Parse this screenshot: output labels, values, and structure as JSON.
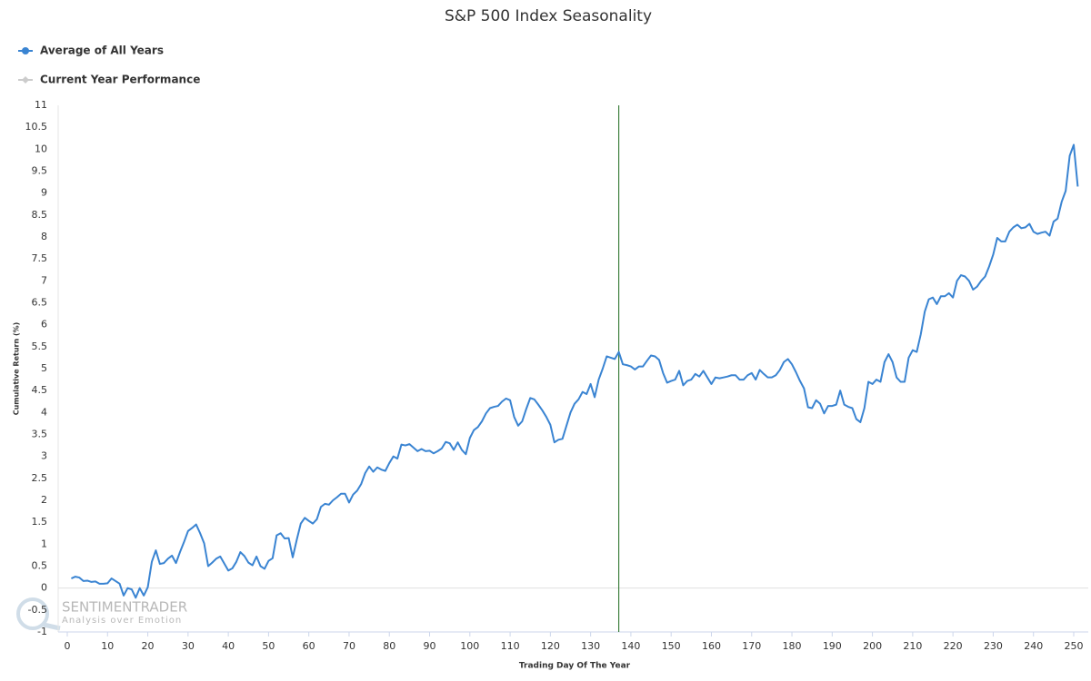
{
  "chart_data": {
    "type": "line",
    "title": "S&P 500 Index Seasonality",
    "x_label": "Trading Day Of The Year",
    "y_label": "Cumulative Return (%)",
    "watermark": {
      "brand": "SENTIMENTRADER",
      "tagline": "Analysis over Emotion"
    },
    "x": [
      1,
      2,
      3,
      4,
      5,
      6,
      7,
      8,
      9,
      10,
      11,
      12,
      13,
      14,
      15,
      16,
      17,
      18,
      19,
      20,
      21,
      22,
      23,
      24,
      25,
      26,
      27,
      28,
      29,
      30,
      31,
      32,
      33,
      34,
      35,
      36,
      37,
      38,
      39,
      40,
      41,
      42,
      43,
      44,
      45,
      46,
      47,
      48,
      49,
      50,
      51,
      52,
      53,
      54,
      55,
      56,
      57,
      58,
      59,
      60,
      61,
      62,
      63,
      64,
      65,
      66,
      67,
      68,
      69,
      70,
      71,
      72,
      73,
      74,
      75,
      76,
      77,
      78,
      79,
      80,
      81,
      82,
      83,
      84,
      85,
      86,
      87,
      88,
      89,
      90,
      91,
      92,
      93,
      94,
      95,
      96,
      97,
      98,
      99,
      100,
      101,
      102,
      103,
      104,
      105,
      106,
      107,
      108,
      109,
      110,
      111,
      112,
      113,
      114,
      115,
      116,
      117,
      118,
      119,
      120,
      121,
      122,
      123,
      124,
      125,
      126,
      127,
      128,
      129,
      130,
      131,
      132,
      133,
      134,
      135,
      136,
      137,
      138,
      139,
      140,
      141,
      142,
      143,
      144,
      145,
      146,
      147,
      148,
      149,
      150,
      151,
      152,
      153,
      154,
      155,
      156,
      157,
      158,
      159,
      160,
      161,
      162,
      163,
      164,
      165,
      166,
      167,
      168,
      169,
      170,
      171,
      172,
      173,
      174,
      175,
      176,
      177,
      178,
      179,
      180,
      181,
      182,
      183,
      184,
      185,
      186,
      187,
      188,
      189,
      190,
      191,
      192,
      193,
      194,
      195,
      196,
      197,
      198,
      199,
      200,
      201,
      202,
      203,
      204,
      205,
      206,
      207,
      208,
      209,
      210,
      211,
      212,
      213,
      214,
      215,
      216,
      217,
      218,
      219,
      220,
      221,
      222,
      223,
      224,
      225,
      226,
      227,
      228,
      229,
      230,
      231,
      232,
      233,
      234,
      235,
      236,
      237,
      238,
      239,
      240,
      241,
      242,
      243,
      244,
      245,
      246,
      247,
      248,
      249,
      250,
      251
    ],
    "series": [
      {
        "name": "Average of All Years",
        "color": "#3a84d2",
        "visible": true,
        "values": [
          0.22,
          0.26,
          0.24,
          0.16,
          0.17,
          0.14,
          0.15,
          0.1,
          0.1,
          0.11,
          0.22,
          0.16,
          0.1,
          -0.17,
          0.0,
          -0.03,
          -0.22,
          0.0,
          -0.17,
          0.02,
          0.6,
          0.86,
          0.55,
          0.57,
          0.67,
          0.74,
          0.57,
          0.82,
          1.05,
          1.3,
          1.37,
          1.45,
          1.25,
          1.02,
          0.5,
          0.58,
          0.67,
          0.72,
          0.56,
          0.4,
          0.45,
          0.6,
          0.82,
          0.73,
          0.58,
          0.52,
          0.72,
          0.5,
          0.44,
          0.62,
          0.68,
          1.2,
          1.25,
          1.13,
          1.14,
          0.7,
          1.1,
          1.47,
          1.6,
          1.53,
          1.47,
          1.57,
          1.85,
          1.92,
          1.9,
          2.0,
          2.07,
          2.15,
          2.15,
          1.95,
          2.13,
          2.22,
          2.37,
          2.62,
          2.77,
          2.65,
          2.75,
          2.7,
          2.67,
          2.85,
          3.0,
          2.95,
          3.27,
          3.25,
          3.28,
          3.2,
          3.12,
          3.17,
          3.12,
          3.13,
          3.07,
          3.12,
          3.18,
          3.33,
          3.3,
          3.15,
          3.32,
          3.15,
          3.05,
          3.42,
          3.6,
          3.67,
          3.8,
          3.98,
          4.1,
          4.13,
          4.15,
          4.25,
          4.32,
          4.28,
          3.9,
          3.7,
          3.8,
          4.08,
          4.33,
          4.3,
          4.18,
          4.05,
          3.9,
          3.72,
          3.32,
          3.38,
          3.4,
          3.7,
          4.0,
          4.2,
          4.3,
          4.47,
          4.42,
          4.65,
          4.35,
          4.75,
          5.0,
          5.28,
          5.25,
          5.22,
          5.38,
          5.1,
          5.08,
          5.05,
          4.98,
          5.05,
          5.05,
          5.18,
          5.3,
          5.28,
          5.2,
          4.9,
          4.68,
          4.72,
          4.75,
          4.95,
          4.62,
          4.72,
          4.75,
          4.88,
          4.82,
          4.95,
          4.8,
          4.65,
          4.8,
          4.78,
          4.8,
          4.82,
          4.85,
          4.85,
          4.75,
          4.75,
          4.85,
          4.9,
          4.75,
          4.97,
          4.88,
          4.8,
          4.8,
          4.85,
          4.97,
          5.15,
          5.22,
          5.1,
          4.92,
          4.72,
          4.55,
          4.12,
          4.1,
          4.28,
          4.2,
          3.98,
          4.15,
          4.15,
          4.18,
          4.5,
          4.18,
          4.13,
          4.1,
          3.85,
          3.78,
          4.1,
          4.7,
          4.65,
          4.75,
          4.7,
          5.15,
          5.33,
          5.15,
          4.8,
          4.7,
          4.7,
          5.25,
          5.42,
          5.38,
          5.78,
          6.3,
          6.58,
          6.62,
          6.47,
          6.65,
          6.65,
          6.72,
          6.62,
          7.0,
          7.13,
          7.1,
          7.0,
          6.8,
          6.87,
          7.0,
          7.1,
          7.33,
          7.6,
          7.98,
          7.9,
          7.9,
          8.12,
          8.22,
          8.28,
          8.2,
          8.22,
          8.3,
          8.12,
          8.07,
          8.1,
          8.12,
          8.03,
          8.35,
          8.42,
          8.8,
          9.05,
          9.85,
          10.1,
          9.15
        ]
      },
      {
        "name": "Current Year Performance",
        "color": "#cccccc",
        "visible": false
      }
    ],
    "vertical_line": {
      "x": 137,
      "color": "#1e6b1e"
    },
    "xlim": [
      0,
      250
    ],
    "xticks": [
      0,
      10,
      20,
      30,
      40,
      50,
      60,
      70,
      80,
      90,
      100,
      110,
      120,
      130,
      140,
      150,
      160,
      170,
      180,
      190,
      200,
      210,
      220,
      230,
      240,
      250
    ],
    "ylim": [
      -1,
      11
    ],
    "yticks": [
      -1,
      -0.5,
      0,
      0.5,
      1,
      1.5,
      2,
      2.5,
      3,
      3.5,
      4,
      4.5,
      5,
      5.5,
      6,
      6.5,
      7,
      7.5,
      8,
      8.5,
      9,
      9.5,
      10,
      10.5,
      11
    ]
  }
}
